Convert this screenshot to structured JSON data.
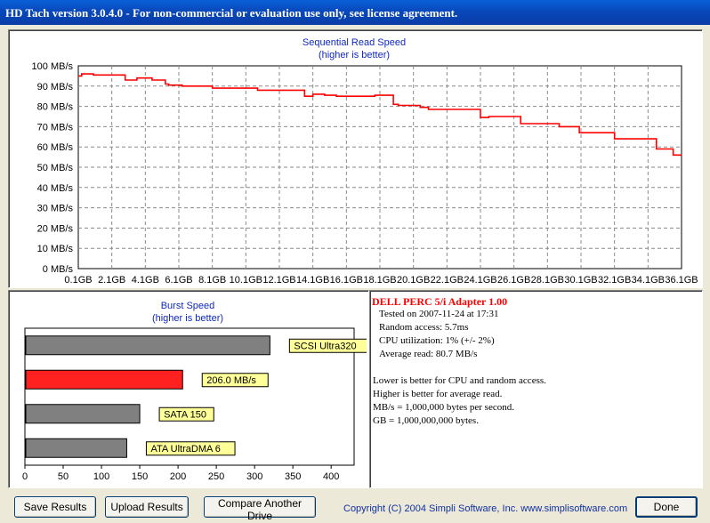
{
  "window": {
    "title": "HD Tach version 3.0.4.0  - For non-commercial or evaluation use only, see license agreement."
  },
  "sequential": {
    "title": "Sequential Read Speed",
    "subtitle": "(higher is better)"
  },
  "burst": {
    "title": "Burst Speed",
    "subtitle": "(higher is better)"
  },
  "colors": {
    "read_line": "#ff0000",
    "bar_gray": "#808080",
    "bar_highlight": "#ff2020",
    "label_box": "#ffff99",
    "drive_name": "#ff0000",
    "copyright": "#1030a0"
  },
  "chart_data": [
    {
      "type": "line",
      "title": "Sequential Read Speed",
      "subtitle": "(higher is better)",
      "ylabel_unit": "MB/s",
      "y_ticks": [
        "0 MB/s",
        "10 MB/s",
        "20 MB/s",
        "30 MB/s",
        "40 MB/s",
        "50 MB/s",
        "60 MB/s",
        "70 MB/s",
        "80 MB/s",
        "90 MB/s",
        "100 MB/s"
      ],
      "x_ticks": [
        "0.1GB",
        "2.1GB",
        "4.1GB",
        "6.1GB",
        "8.1GB",
        "10.1GB",
        "12.1GB",
        "14.1GB",
        "16.1GB",
        "18.1GB",
        "20.1GB",
        "22.1GB",
        "24.1GB",
        "26.1GB",
        "28.1GB",
        "30.1GB",
        "32.1GB",
        "34.1GB",
        "36.1GB"
      ],
      "xlim": [
        0.1,
        36.1
      ],
      "ylim": [
        0,
        100
      ],
      "grid": true,
      "series": [
        {
          "x": [
            0.1,
            0.3,
            1.0,
            2.0,
            2.9,
            3.0,
            3.6,
            4.1,
            4.5,
            5.3,
            5.5,
            6.0,
            6.3,
            7.2,
            8.1,
            8.6,
            9.2,
            10.0,
            10.8,
            11.2,
            12.0,
            12.8,
            13.6,
            14.1,
            14.8,
            15.5,
            16.2,
            17.0,
            17.8,
            18.5,
            18.9,
            19.2,
            20.0,
            20.5,
            21.0,
            22.0,
            22.8,
            23.5,
            24.1,
            24.6,
            25.3,
            26.0,
            26.5,
            27.3,
            28.1,
            28.8,
            29.5,
            30.0,
            30.6,
            31.3,
            32.1,
            33.0,
            33.5,
            34.1,
            34.6,
            35.2,
            35.6,
            36.1
          ],
          "values": [
            95,
            96,
            95.5,
            95.5,
            93,
            93,
            94,
            94,
            93,
            91,
            90.5,
            90.5,
            90,
            90,
            89,
            89,
            89,
            89,
            88,
            88,
            88,
            88,
            85,
            86,
            85.5,
            85,
            85,
            85,
            85.5,
            85.5,
            81,
            80.5,
            80.5,
            79.5,
            78.5,
            78.5,
            78.5,
            78.5,
            74.5,
            75,
            75,
            75,
            71.5,
            71.5,
            71.5,
            70,
            70,
            67,
            67,
            67,
            64,
            64,
            64,
            64,
            59,
            59,
            56,
            56
          ]
        }
      ]
    },
    {
      "type": "bar",
      "orientation": "horizontal",
      "title": "Burst Speed",
      "subtitle": "(higher is better)",
      "categories": [
        "SCSI Ultra320",
        "206.0 MB/s",
        "SATA 150",
        "ATA UltraDMA 6"
      ],
      "values": [
        320,
        206,
        150,
        133
      ],
      "highlight_index": 1,
      "x_ticks": [
        "0",
        "50",
        "100",
        "150",
        "200",
        "250",
        "300",
        "350",
        "400"
      ],
      "xlim": [
        0,
        430
      ],
      "grid": false
    }
  ],
  "info": {
    "drive_name": "DELL PERC 5/i Adapter 1.00",
    "tested": "Tested on 2007-11-24 at 17:31",
    "random_access": "Random access: 5.7ms",
    "cpu": "CPU utilization: 1% (+/- 2%)",
    "average_read": "Average read: 80.7 MB/s",
    "note1": "Lower is better for CPU and random access.",
    "note2": "Higher is better for average read.",
    "note3": "MB/s = 1,000,000 bytes per second.",
    "note4": "GB = 1,000,000,000 bytes."
  },
  "footer": {
    "save_label": "Save Results",
    "upload_label": "Upload Results",
    "compare_label": "Compare Another Drive",
    "copyright": "Copyright (C) 2004 Simpli Software, Inc. www.simplisoftware.com",
    "done_label": "Done"
  }
}
